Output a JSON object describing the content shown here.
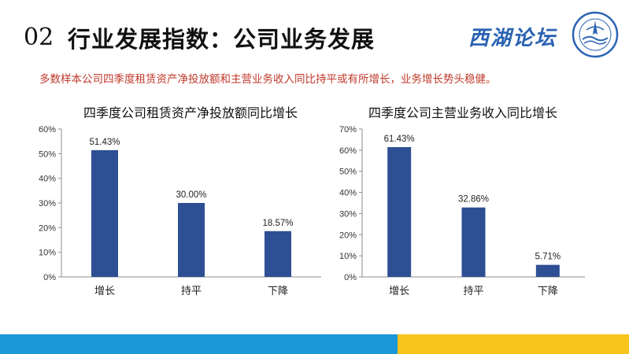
{
  "header": {
    "number": "02",
    "title": "行业发展指数：公司业务发展"
  },
  "brand": {
    "text": "西湖论坛"
  },
  "subtitle": "多数样本公司四季度租赁资产净投放额和主营业务收入同比持平或有所增长，业务增长势头稳健。",
  "colors": {
    "bar": "#2e4f94",
    "subtitle": "#c0392b",
    "footer_blue": "#1a97d6",
    "footer_yellow": "#f7c51e"
  },
  "chart_data": [
    {
      "type": "bar",
      "title": "四季度公司租赁资产净投放额同比增长",
      "categories": [
        "增长",
        "持平",
        "下降"
      ],
      "values": [
        51.43,
        30.0,
        18.57
      ],
      "value_labels": [
        "51.43%",
        "30.00%",
        "18.57%"
      ],
      "ylim": [
        0,
        60
      ],
      "yticks": [
        "0%",
        "10%",
        "20%",
        "30%",
        "40%",
        "50%",
        "60%"
      ],
      "grid": false
    },
    {
      "type": "bar",
      "title": "四季度公司主营业务收入同比增长",
      "categories": [
        "增长",
        "持平",
        "下降"
      ],
      "values": [
        61.43,
        32.86,
        5.71
      ],
      "value_labels": [
        "61.43%",
        "32.86%",
        "5.71%"
      ],
      "ylim": [
        0,
        70
      ],
      "yticks": [
        "0%",
        "10%",
        "20%",
        "30%",
        "40%",
        "50%",
        "60%",
        "70%"
      ],
      "grid": false
    }
  ]
}
